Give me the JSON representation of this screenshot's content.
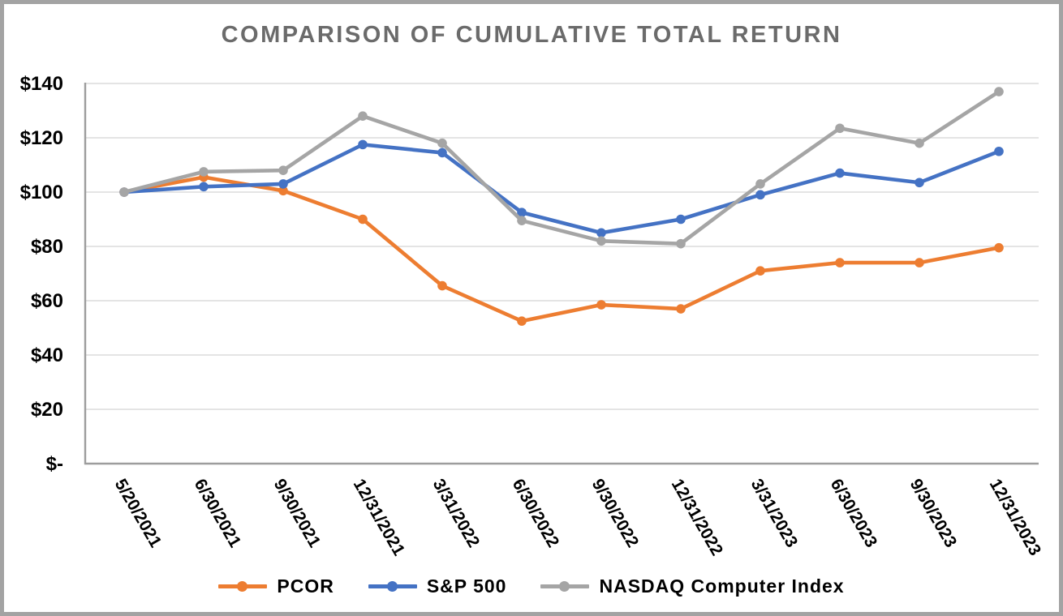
{
  "chart": {
    "title": "COMPARISON OF CUMULATIVE TOTAL RETURN"
  },
  "chart_data": {
    "type": "line",
    "title": "COMPARISON OF CUMULATIVE TOTAL RETURN",
    "xlabel": "",
    "ylabel": "",
    "categories": [
      "5/20/2021",
      "6/30/2021",
      "9/30/2021",
      "12/31/2021",
      "3/31/2022",
      "6/30/2022",
      "9/30/2022",
      "12/31/2022",
      "3/31/2023",
      "6/30/2023",
      "9/30/2023",
      "12/31/2023"
    ],
    "series": [
      {
        "name": "PCOR",
        "color": "#ED7D31",
        "values": [
          100,
          105.5,
          100.5,
          90,
          65.5,
          52.5,
          58.5,
          57,
          71,
          74,
          74,
          79.5
        ]
      },
      {
        "name": "S&P 500",
        "color": "#4472C4",
        "values": [
          100,
          102,
          103,
          117.5,
          114.5,
          92.5,
          85,
          90,
          99,
          107,
          103.5,
          115
        ]
      },
      {
        "name": "NASDAQ Computer Index",
        "color": "#A5A5A5",
        "values": [
          100,
          107.5,
          108,
          128,
          118,
          89.5,
          82,
          81,
          103,
          123.5,
          118,
          137
        ]
      }
    ],
    "y_ticks": [
      {
        "value": 140,
        "label": "$140"
      },
      {
        "value": 120,
        "label": "$120"
      },
      {
        "value": 100,
        "label": "$100"
      },
      {
        "value": 80,
        "label": "$80"
      },
      {
        "value": 60,
        "label": "$60"
      },
      {
        "value": 40,
        "label": "$40"
      },
      {
        "value": 20,
        "label": "$20"
      },
      {
        "value": 0,
        "label": "$-"
      }
    ],
    "ylim": [
      0,
      140
    ],
    "grid": true,
    "legend_position": "bottom",
    "x_label_rotation_deg": 60
  },
  "colors": {
    "title_text": "#6b6b6b",
    "tick_text": "#000000",
    "axis_line": "#9d9d9d",
    "gridline": "#dcdcdc",
    "frame_border": "#a3a3a3",
    "background": "#ffffff"
  }
}
